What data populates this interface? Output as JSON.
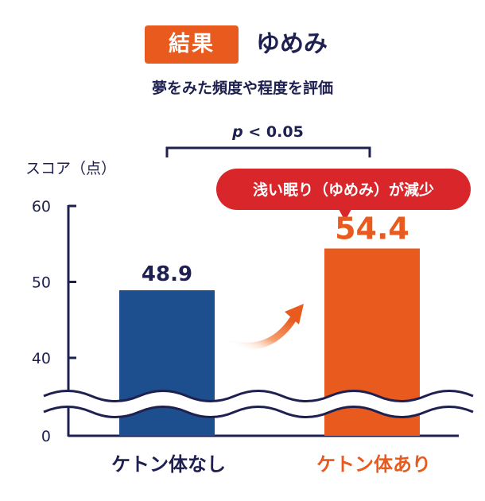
{
  "header": {
    "badge": "結果",
    "title": "ゆめみ",
    "subtitle": "夢をみた頻度や程度を評価"
  },
  "significance": {
    "p_label": "p",
    "p_rest": " < 0.05"
  },
  "callout": "浅い眠り（ゆめみ）が減少",
  "colors": {
    "text_dark": "#1e2150",
    "bar_control": "#1d4f8e",
    "bar_ketone": "#e85a1e",
    "callout_red": "#d9262b"
  },
  "chart_data": {
    "type": "bar",
    "ylabel": "スコア（点）",
    "categories": [
      "ケトン体なし",
      "ケトン体あり"
    ],
    "values": [
      48.9,
      54.4
    ],
    "value_labels": [
      "48.9",
      "54.4"
    ],
    "yticks": [
      0,
      40,
      50,
      60
    ],
    "ylim": [
      0,
      60
    ],
    "axis_break": true,
    "grid": false
  }
}
